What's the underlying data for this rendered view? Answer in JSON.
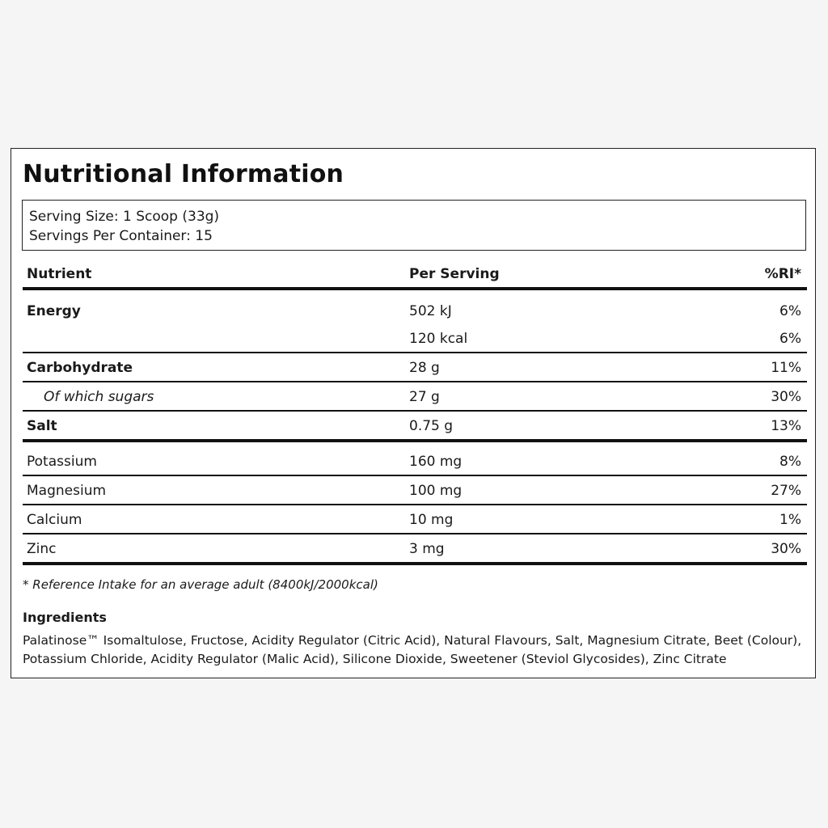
{
  "title": "Nutritional Information",
  "serving": {
    "size": "Serving Size: 1 Scoop (33g)",
    "per_container": "Servings Per Container: 15"
  },
  "table": {
    "headers": {
      "nutrient": "Nutrient",
      "per_serving": "Per Serving",
      "ri": "%RI*"
    },
    "rows": [
      {
        "name": "Energy",
        "per": "502 kJ",
        "ri": "6%"
      },
      {
        "name": "",
        "per": "120 kcal",
        "ri": "6%"
      },
      {
        "name": "Carbohydrate",
        "per": "28 g",
        "ri": "11%"
      },
      {
        "name": "Of which sugars",
        "per": "27 g",
        "ri": "30%"
      },
      {
        "name": "Salt",
        "per": "0.75 g",
        "ri": "13%"
      },
      {
        "name": "Potassium",
        "per": "160 mg",
        "ri": "8%"
      },
      {
        "name": "Magnesium",
        "per": "100 mg",
        "ri": "27%"
      },
      {
        "name": "Calcium",
        "per": "10 mg",
        "ri": "1%"
      },
      {
        "name": "Zinc",
        "per": "3 mg",
        "ri": "30%"
      }
    ]
  },
  "footnote": "* Reference Intake for an average adult (8400kJ/2000kcal)",
  "ingredients": {
    "title": "Ingredients",
    "text": "Palatinose™ Isomaltulose, Fructose, Acidity Regulator (Citric Acid), Natural Flavours, Salt, Magnesium Citrate, Beet (Colour), Potassium Chloride, Acidity Regulator (Malic Acid), Silicone Dioxide, Sweetener (Steviol Glycosides), Zinc Citrate"
  }
}
